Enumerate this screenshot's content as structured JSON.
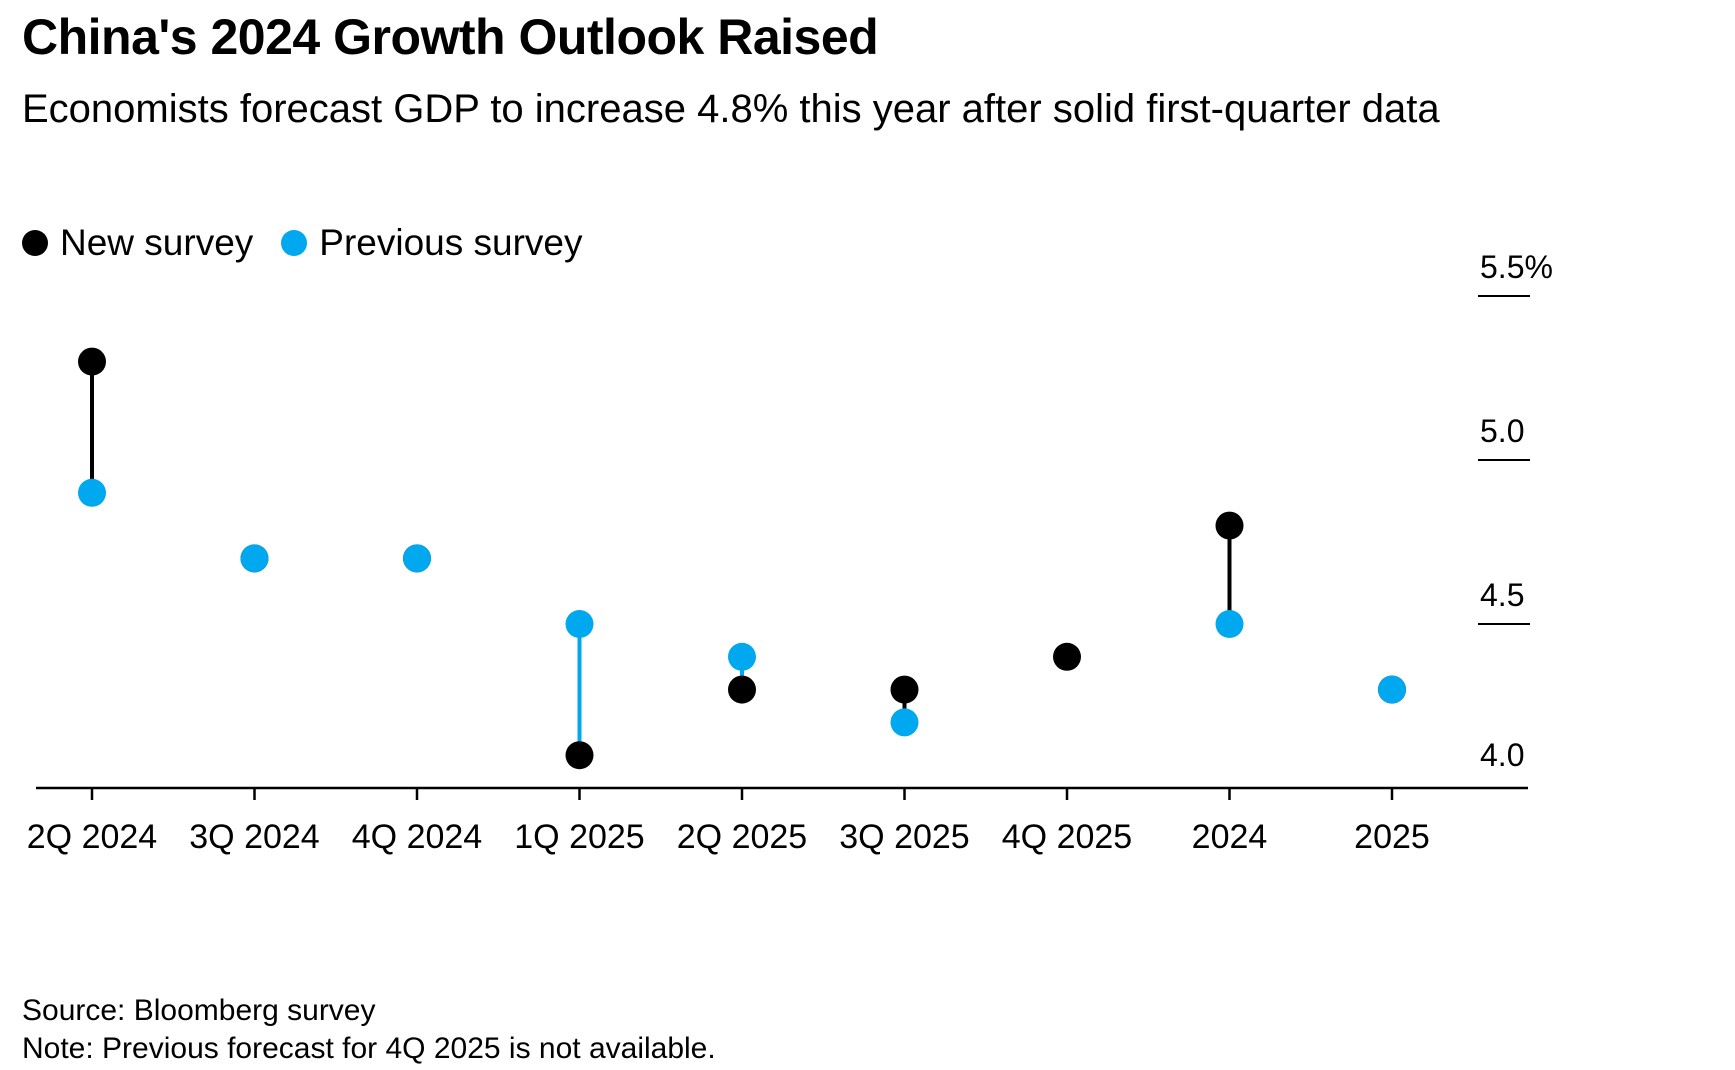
{
  "title": "China's 2024 Growth Outlook Raised",
  "subtitle": "Economists forecast GDP to increase 4.8% this year after solid first-quarter data",
  "legend": {
    "new_label": "New survey",
    "previous_label": "Previous survey"
  },
  "colors": {
    "new": "#000000",
    "previous": "#00a8ef",
    "axis": "#000000"
  },
  "chart_data": {
    "type": "scatter",
    "categories": [
      "2Q 2024",
      "3Q 2024",
      "4Q 2024",
      "1Q 2025",
      "2Q 2025",
      "3Q 2025",
      "4Q 2025",
      "2024",
      "2025"
    ],
    "series": [
      {
        "name": "New survey",
        "values": [
          5.3,
          4.7,
          4.7,
          4.1,
          4.3,
          4.3,
          4.4,
          4.8,
          4.3
        ]
      },
      {
        "name": "Previous survey",
        "values": [
          4.9,
          4.7,
          4.7,
          4.5,
          4.4,
          4.2,
          null,
          4.5,
          4.3
        ]
      }
    ],
    "ylim": [
      4.0,
      5.5
    ],
    "yticks": [
      "4.0",
      "4.5",
      "5.0",
      "5.5%"
    ],
    "y_axis_side": "right",
    "grid": false,
    "legend_position": "top-left"
  },
  "footer": {
    "source": "Source: Bloomberg survey",
    "note": "Note: Previous forecast for 4Q 2025 is not available."
  }
}
